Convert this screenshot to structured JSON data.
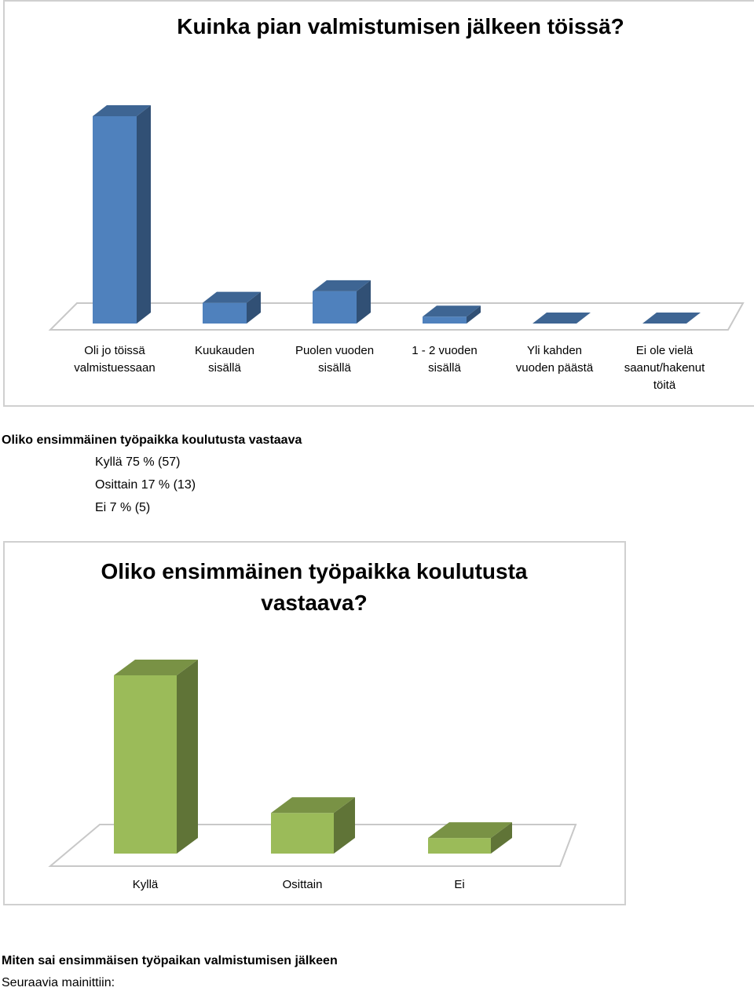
{
  "chart_data": [
    {
      "type": "bar",
      "title": "Kuinka pian valmistumisen jälkeen töissä?",
      "categories": [
        [
          "Oli jo töissä",
          "valmistuessaan"
        ],
        [
          "Kuukauden",
          "sisällä"
        ],
        [
          "Puolen vuoden",
          "sisällä"
        ],
        [
          "1 - 2 vuoden",
          "sisällä"
        ],
        [
          "Yli kahden",
          "vuoden päästä"
        ],
        [
          "Ei ole vielä",
          "saanut/hakenut",
          "töitä"
        ]
      ],
      "values": [
        90,
        9,
        14,
        3,
        0,
        0
      ],
      "color": "#4f81bd",
      "style": "3d-column"
    },
    {
      "type": "bar",
      "title": "Oliko ensimmäinen työpaikka koulutusta vastaava?",
      "categories": [
        [
          "Kyllä"
        ],
        [
          "Osittain"
        ],
        [
          "Ei"
        ]
      ],
      "values": [
        57,
        13,
        5
      ],
      "color": "#9bbb59",
      "style": "3d-column"
    }
  ],
  "section": {
    "heading": "Oliko ensimmäinen työpaikka koulutusta vastaava",
    "rows": [
      "Kyllä 75 % (57)",
      "Osittain 17 % (13)",
      "Ei 7 % (5)"
    ]
  },
  "footer": {
    "heading": "Miten sai ensimmäisen työpaikan valmistumisen jälkeen",
    "subtext": "Seuraavia mainittiin:"
  }
}
